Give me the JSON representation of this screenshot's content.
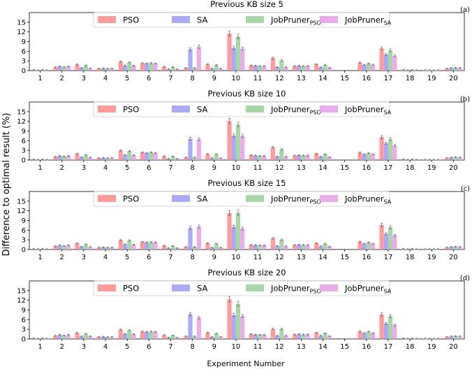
{
  "figure": {
    "ylabel": "Difference to optimal result (%)",
    "xlabel": "Experiment Number"
  },
  "chart_data": [
    {
      "type": "bar",
      "panel_tag": "(a)",
      "title": "Previous KB size 5",
      "categories": [
        "1",
        "2",
        "3",
        "4",
        "5",
        "6",
        "7",
        "8",
        "9",
        "10",
        "11",
        "12",
        "13",
        "14",
        "15",
        "16",
        "17",
        "18",
        "19",
        "20"
      ],
      "yticks": [
        "0",
        "3",
        "6",
        "9",
        "12",
        "15"
      ],
      "ylim": [
        0,
        18
      ],
      "legend_placement": "top-center",
      "grid": false,
      "error_bars": true,
      "series": [
        {
          "name": "PSO",
          "name_sub": "",
          "color": "#ff8a8a",
          "values": [
            0.2,
            1.0,
            1.9,
            0.6,
            2.8,
            2.3,
            1.2,
            0.8,
            2.0,
            11.5,
            1.6,
            3.9,
            1.4,
            2.0,
            0.0,
            2.5,
            6.9,
            0.2,
            0.1,
            0.6
          ]
        },
        {
          "name": "SA",
          "name_sub": "",
          "color": "#9b9bf5",
          "values": [
            0.1,
            1.3,
            0.8,
            0.7,
            1.6,
            2.2,
            0.4,
            6.6,
            0.6,
            7.0,
            1.5,
            1.1,
            1.5,
            1.0,
            0.0,
            1.8,
            5.0,
            0.1,
            0.1,
            0.8
          ]
        },
        {
          "name": "JobPruner",
          "name_sub": "PSO",
          "color": "#98cf98",
          "values": [
            0.2,
            1.1,
            1.6,
            0.6,
            2.6,
            2.3,
            1.1,
            0.8,
            1.7,
            10.6,
            1.4,
            3.1,
            1.4,
            1.8,
            0.0,
            2.2,
            6.3,
            0.2,
            0.1,
            0.9
          ]
        },
        {
          "name": "JobPruner",
          "name_sub": "SA",
          "color": "#e79de7",
          "values": [
            0.1,
            1.3,
            0.7,
            0.6,
            1.5,
            2.2,
            0.4,
            7.4,
            0.6,
            6.8,
            1.4,
            1.0,
            1.4,
            0.9,
            0.0,
            1.8,
            4.6,
            0.1,
            0.1,
            0.8
          ]
        }
      ]
    },
    {
      "type": "bar",
      "panel_tag": "(b)",
      "title": "Previous KB size 10",
      "categories": [
        "1",
        "2",
        "3",
        "4",
        "5",
        "6",
        "7",
        "8",
        "9",
        "10",
        "11",
        "12",
        "13",
        "14",
        "15",
        "16",
        "17",
        "18",
        "19",
        "20"
      ],
      "yticks": [
        "0",
        "3",
        "6",
        "9",
        "12",
        "15"
      ],
      "ylim": [
        0,
        18
      ],
      "legend_placement": "top-center",
      "grid": false,
      "error_bars": true,
      "series": [
        {
          "name": "PSO",
          "name_sub": "",
          "color": "#ff8a8a",
          "values": [
            0.2,
            1.0,
            2.0,
            0.6,
            3.0,
            2.4,
            1.2,
            0.8,
            1.9,
            12.1,
            1.5,
            4.0,
            1.4,
            2.0,
            0.0,
            2.3,
            7.1,
            0.2,
            0.1,
            0.6
          ]
        },
        {
          "name": "SA",
          "name_sub": "",
          "color": "#9b9bf5",
          "values": [
            0.1,
            1.3,
            0.9,
            0.7,
            1.6,
            2.2,
            0.4,
            6.6,
            0.6,
            7.6,
            1.4,
            1.1,
            1.5,
            1.0,
            0.0,
            1.8,
            5.2,
            0.1,
            0.1,
            0.8
          ]
        },
        {
          "name": "JobPruner",
          "name_sub": "PSO",
          "color": "#98cf98",
          "values": [
            0.2,
            1.1,
            1.6,
            0.6,
            2.8,
            2.4,
            1.1,
            0.8,
            1.8,
            11.1,
            1.3,
            3.3,
            1.4,
            1.8,
            0.0,
            2.2,
            6.5,
            0.2,
            0.1,
            0.9
          ]
        },
        {
          "name": "JobPruner",
          "name_sub": "SA",
          "color": "#e79de7",
          "values": [
            0.1,
            1.3,
            0.8,
            0.6,
            1.5,
            2.2,
            0.4,
            6.5,
            0.6,
            7.5,
            1.3,
            1.0,
            1.4,
            0.9,
            0.0,
            1.8,
            4.5,
            0.1,
            0.1,
            0.8
          ]
        }
      ]
    },
    {
      "type": "bar",
      "panel_tag": "(c)",
      "title": "Previous KB size 15",
      "categories": [
        "1",
        "2",
        "3",
        "4",
        "5",
        "6",
        "7",
        "8",
        "9",
        "10",
        "11",
        "12",
        "13",
        "14",
        "15",
        "16",
        "17",
        "18",
        "19",
        "20"
      ],
      "yticks": [
        "0",
        "3",
        "6",
        "9",
        "12",
        "15"
      ],
      "ylim": [
        0,
        18
      ],
      "legend_placement": "top-center",
      "grid": false,
      "error_bars": true,
      "series": [
        {
          "name": "PSO",
          "name_sub": "",
          "color": "#ff8a8a",
          "values": [
            0.2,
            1.0,
            1.9,
            0.6,
            2.9,
            2.4,
            1.2,
            0.8,
            2.0,
            11.3,
            1.4,
            3.5,
            1.4,
            2.0,
            0.0,
            2.4,
            7.6,
            0.2,
            0.1,
            0.6
          ]
        },
        {
          "name": "SA",
          "name_sub": "",
          "color": "#9b9bf5",
          "values": [
            0.1,
            1.3,
            0.9,
            0.7,
            1.6,
            2.2,
            0.4,
            6.7,
            0.6,
            7.0,
            1.4,
            1.1,
            1.5,
            1.0,
            0.0,
            1.8,
            4.9,
            0.1,
            0.1,
            0.8
          ]
        },
        {
          "name": "JobPruner",
          "name_sub": "PSO",
          "color": "#98cf98",
          "values": [
            0.2,
            1.1,
            1.6,
            0.6,
            2.8,
            2.3,
            1.1,
            0.8,
            1.8,
            11.4,
            1.3,
            3.0,
            1.4,
            1.8,
            0.0,
            2.2,
            6.9,
            0.2,
            0.1,
            0.9
          ]
        },
        {
          "name": "JobPruner",
          "name_sub": "SA",
          "color": "#e79de7",
          "values": [
            0.1,
            1.3,
            0.8,
            0.6,
            1.5,
            2.2,
            0.4,
            7.1,
            0.6,
            6.5,
            1.3,
            1.0,
            1.4,
            0.9,
            0.0,
            1.8,
            4.4,
            0.1,
            0.1,
            0.8
          ]
        }
      ]
    },
    {
      "type": "bar",
      "panel_tag": "(d)",
      "title": "Previous KB size 20",
      "categories": [
        "1",
        "2",
        "3",
        "4",
        "5",
        "6",
        "7",
        "8",
        "9",
        "10",
        "11",
        "12",
        "13",
        "14",
        "15",
        "16",
        "17",
        "18",
        "19",
        "20"
      ],
      "yticks": [
        "0",
        "3",
        "6",
        "9",
        "12",
        "15"
      ],
      "ylim": [
        0,
        18
      ],
      "legend_placement": "top-center",
      "grid": false,
      "error_bars": true,
      "series": [
        {
          "name": "PSO",
          "name_sub": "",
          "color": "#ff8a8a",
          "values": [
            0.2,
            1.0,
            1.9,
            0.6,
            2.9,
            2.3,
            1.2,
            0.8,
            2.0,
            12.3,
            1.5,
            3.1,
            1.4,
            2.0,
            0.0,
            2.3,
            7.6,
            0.2,
            0.1,
            0.6
          ]
        },
        {
          "name": "SA",
          "name_sub": "",
          "color": "#9b9bf5",
          "values": [
            0.1,
            1.3,
            0.8,
            0.7,
            1.6,
            2.2,
            0.4,
            7.7,
            0.6,
            7.4,
            1.3,
            1.0,
            1.5,
            1.0,
            0.0,
            1.8,
            4.8,
            0.1,
            0.1,
            0.8
          ]
        },
        {
          "name": "JobPruner",
          "name_sub": "PSO",
          "color": "#98cf98",
          "values": [
            0.2,
            1.1,
            1.6,
            0.6,
            2.7,
            2.3,
            1.1,
            0.8,
            1.7,
            10.9,
            1.3,
            3.1,
            1.4,
            1.8,
            0.0,
            2.3,
            7.1,
            0.2,
            0.1,
            0.9
          ]
        },
        {
          "name": "JobPruner",
          "name_sub": "SA",
          "color": "#e79de7",
          "values": [
            0.1,
            1.3,
            0.8,
            0.6,
            1.5,
            2.2,
            0.4,
            6.6,
            0.6,
            7.1,
            1.3,
            1.0,
            1.4,
            0.9,
            0.0,
            1.8,
            4.3,
            0.1,
            0.1,
            0.8
          ]
        }
      ]
    }
  ]
}
